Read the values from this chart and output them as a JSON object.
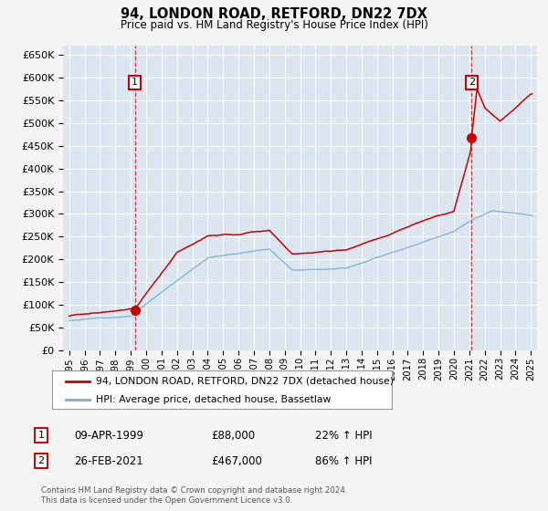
{
  "title": "94, LONDON ROAD, RETFORD, DN22 7DX",
  "subtitle": "Price paid vs. HM Land Registry's House Price Index (HPI)",
  "footer": "Contains HM Land Registry data © Crown copyright and database right 2024.\nThis data is licensed under the Open Government Licence v3.0.",
  "legend_line1": "94, LONDON ROAD, RETFORD, DN22 7DX (detached house)",
  "legend_line2": "HPI: Average price, detached house, Bassetlaw",
  "ann1_label": "1",
  "ann1_date": "09-APR-1999",
  "ann1_price": "£88,000",
  "ann1_hpi": "22% ↑ HPI",
  "ann1_x": 1999.27,
  "ann1_y": 88000,
  "ann2_label": "2",
  "ann2_date": "26-FEB-2021",
  "ann2_price": "£467,000",
  "ann2_hpi": "86% ↑ HPI",
  "ann2_x": 2021.15,
  "ann2_y": 467000,
  "ylim": [
    0,
    670000
  ],
  "xlim_start": 1994.6,
  "xlim_end": 2025.4,
  "fig_bg": "#f5f5f5",
  "plot_bg": "#dce6f0",
  "grid_color": "#ffffff",
  "red_color": "#cc0000",
  "blue_color": "#7ab0d4",
  "ann_box_color": "#cc0000"
}
